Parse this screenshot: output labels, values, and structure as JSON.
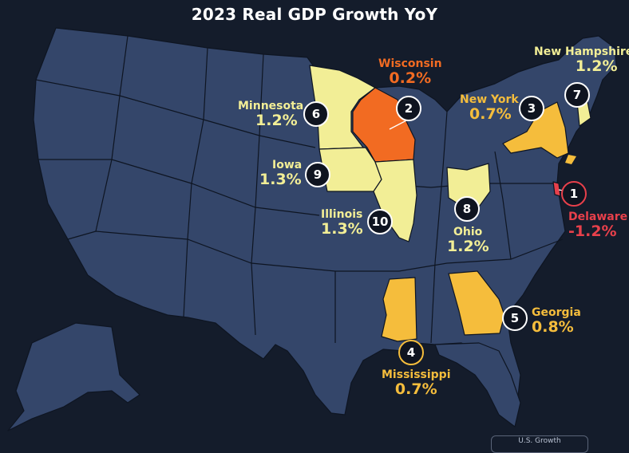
{
  "title": "2023 Real GDP Growth YoY",
  "colors": {
    "background": "#141c2b",
    "state_default": "#34466a",
    "state_border": "#0e1522",
    "light_yellow": "#f2ee96",
    "yellow": "#f5bd3c",
    "orange": "#f26b22",
    "red": "#e8404b",
    "title_text": "#ffffff"
  },
  "highlighted_states": [
    {
      "rank": "1",
      "name": "Delaware",
      "value": "-1.2%",
      "color": "#e8404b"
    },
    {
      "rank": "2",
      "name": "Wisconsin",
      "value": "0.2%",
      "color": "#f26b22"
    },
    {
      "rank": "3",
      "name": "New York",
      "value": "0.7%",
      "color": "#f5bd3c"
    },
    {
      "rank": "4",
      "name": "Mississippi",
      "value": "0.7%",
      "color": "#f5bd3c"
    },
    {
      "rank": "5",
      "name": "Georgia",
      "value": "0.8%",
      "color": "#f5bd3c"
    },
    {
      "rank": "6",
      "name": "Minnesota",
      "value": "1.2%",
      "color": "#f2ee96"
    },
    {
      "rank": "7",
      "name": "New Hampshire",
      "value": "1.2%",
      "color": "#f2ee96"
    },
    {
      "rank": "8",
      "name": "Ohio",
      "value": "1.2%",
      "color": "#f2ee96"
    },
    {
      "rank": "9",
      "name": "Iowa",
      "value": "1.3%",
      "color": "#f2ee96"
    },
    {
      "rank": "10",
      "name": "Illinois",
      "value": "1.3%",
      "color": "#f2ee96"
    }
  ],
  "source_label": "U.S. Growth"
}
